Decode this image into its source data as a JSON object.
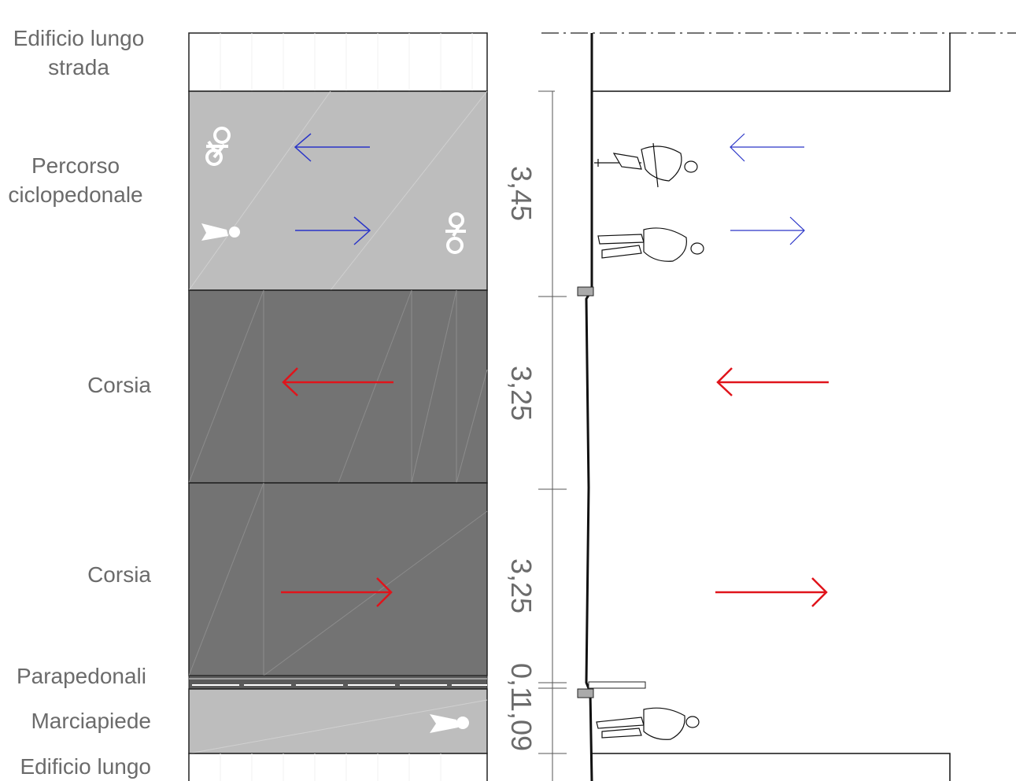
{
  "labels": {
    "building_top_1": "Edificio lungo",
    "building_top_2": "strada",
    "bike_path_1": "Percorso",
    "bike_path_2": "ciclopedonale",
    "lane_1": "Corsia",
    "lane_2": "Corsia",
    "guardrail": "Parapedonali",
    "sidewalk": "Marciapiede",
    "building_bottom": "Edificio lungo"
  },
  "dimensions": {
    "bike_path": "3,45",
    "lane_1": "3,25",
    "lane_2": "3,25",
    "guardrail": "0,1",
    "sidewalk": "1,09"
  },
  "colors": {
    "lane": "#737373",
    "path": "#bdbdbd",
    "arrow_traffic": "#e0141b",
    "arrow_path": "#2a35c8",
    "text": "#6b6b6b"
  },
  "icons": {
    "bike_icons": [
      "bicycle-icon",
      "bicycle-icon"
    ],
    "pedestrian_icons": [
      "pedestrian-icon",
      "pedestrian-icon"
    ],
    "figures": [
      "cyclist-figure",
      "walking-person-figure",
      "walking-person-figure"
    ]
  }
}
